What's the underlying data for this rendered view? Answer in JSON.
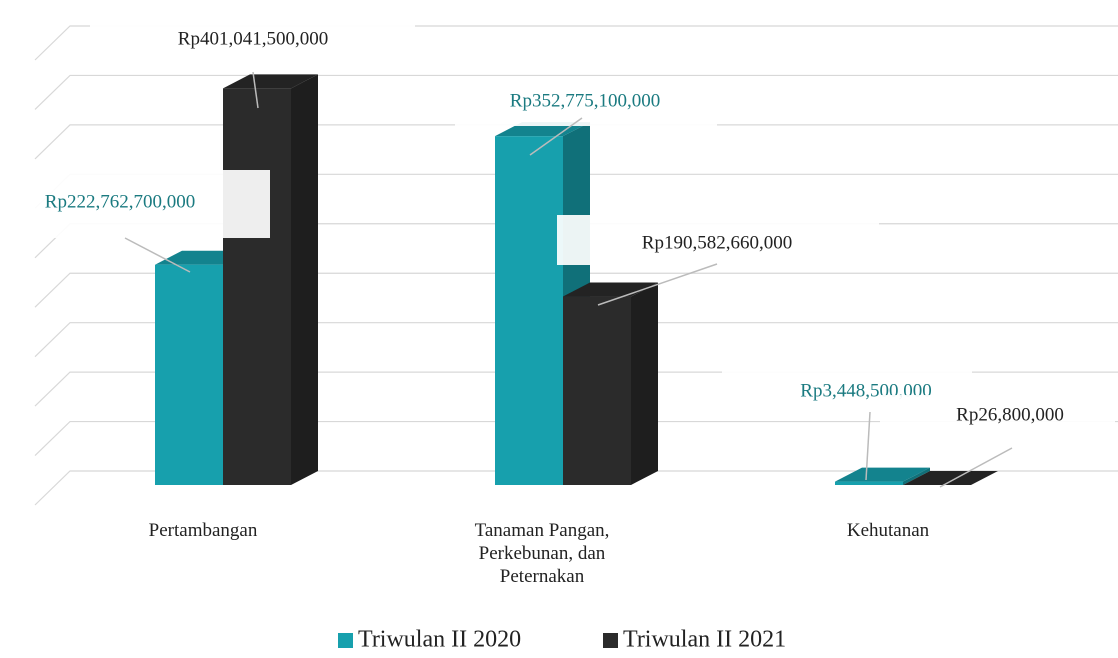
{
  "chart_data": {
    "type": "bar3d",
    "categories": [
      "Pertambangan",
      "Tanaman Pangan, Perkebunan, dan Peternakan",
      "Kehutanan"
    ],
    "series": [
      {
        "name": "Triwulan II 2020",
        "color": "#17a0ad",
        "values": [
          222762700000,
          352775100000,
          3448500000
        ],
        "value_labels": [
          "Rp222,762,700,000",
          "Rp352,775,100,000",
          "Rp3,448,500,000"
        ]
      },
      {
        "name": "Triwulan II 2021",
        "color": "#2b2b2b",
        "values": [
          401041500000,
          190582660000,
          26800000
        ],
        "value_labels": [
          "Rp401,041,500,000",
          "Rp190,582,660,000",
          "Rp26,800,000"
        ]
      }
    ],
    "ylim": [
      0,
      450000000000
    ],
    "yticks": [
      0,
      50000000000,
      100000000000,
      150000000000,
      200000000000,
      250000000000,
      300000000000,
      350000000000,
      400000000000,
      450000000000
    ],
    "grid": true
  }
}
